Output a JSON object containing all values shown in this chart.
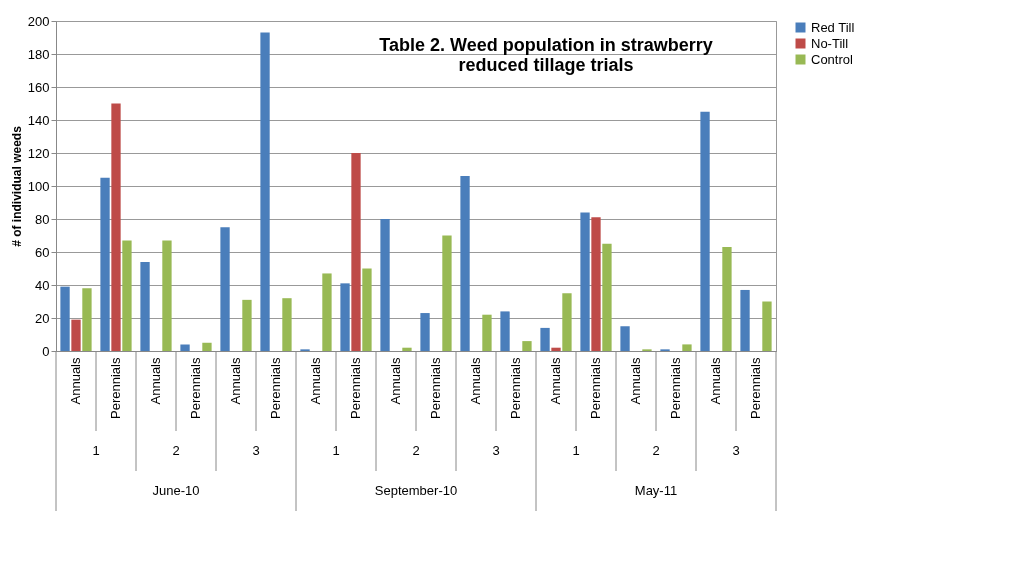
{
  "chart_data": {
    "type": "bar",
    "title": "Table 2. Weed population in strawberry\nreduced tillage trials",
    "ylabel": "# of individual weeds",
    "categories": [
      "Annuals",
      "Perennials",
      "Annuals",
      "Perennials",
      "Annuals",
      "Perennials",
      "Annuals",
      "Perennials",
      "Annuals",
      "Perennials",
      "Annuals",
      "Perennials",
      "Annuals",
      "Perennials",
      "Annuals",
      "Perennials",
      "Annuals",
      "Perennials"
    ],
    "series": [
      {
        "name": "Red Till",
        "color": "#4a7ebb",
        "values": [
          39,
          105,
          54,
          4,
          75,
          193,
          1,
          41,
          80,
          23,
          106,
          24,
          14,
          84,
          15,
          1,
          145,
          37
        ]
      },
      {
        "name": "No-Till",
        "color": "#be4b48",
        "values": [
          19,
          150,
          0,
          0,
          0,
          0,
          0,
          120,
          0,
          0,
          0,
          0,
          2,
          81,
          0,
          0,
          0,
          0
        ]
      },
      {
        "name": "Control",
        "color": "#98b954",
        "values": [
          38,
          67,
          67,
          5,
          31,
          32,
          47,
          50,
          2,
          70,
          22,
          6,
          35,
          65,
          1,
          4,
          63,
          30
        ]
      }
    ],
    "annotations": [
      "1",
      "2",
      "3",
      "1",
      "2",
      "3",
      "1",
      "2",
      "3",
      "June-10",
      "September-10",
      "May-11"
    ],
    "ylim": [
      0,
      200
    ],
    "yticks": [
      0,
      20,
      40,
      60,
      80,
      100,
      120,
      140,
      160,
      180,
      200
    ],
    "grid": "y",
    "legend": "right"
  }
}
